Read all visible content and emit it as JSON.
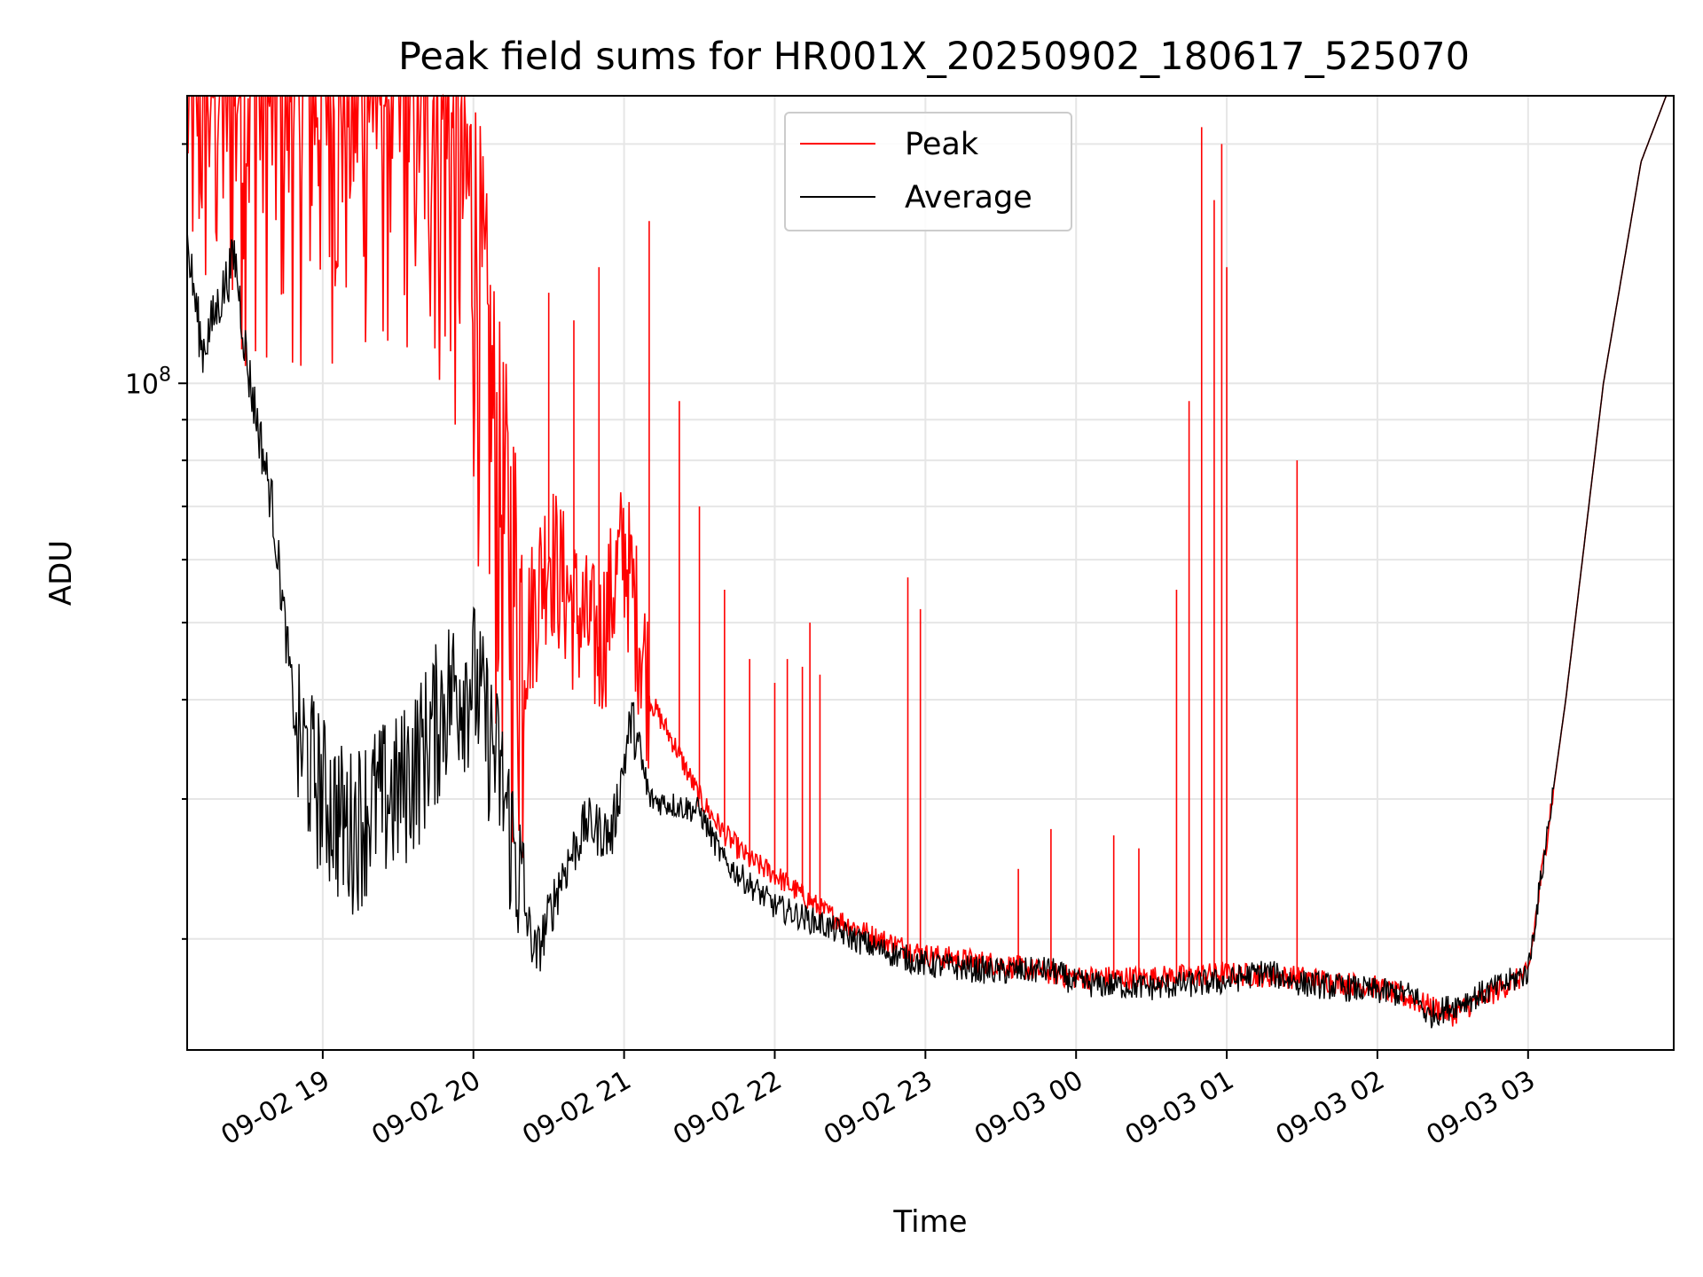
{
  "chart_data": {
    "type": "line",
    "title": "Peak field sums for HR001X_20250902_180617_525070",
    "xlabel": "Time",
    "ylabel": "ADU",
    "y_scale": "log",
    "grid": true,
    "legend_position": "top-center",
    "x_tick_labels": [
      "09-02 19",
      "09-02 20",
      "09-02 21",
      "09-02 22",
      "09-02 23",
      "09-03 00",
      "09-03 01",
      "09-03 02",
      "09-03 03"
    ],
    "y_major_tick_label": "10^8",
    "xlim": [
      "2025-09-02 18:06",
      "2025-09-03 03:58"
    ],
    "ylim": [
      14500000,
      230000000
    ],
    "colors": {
      "peak": "#ff0000",
      "average": "#000000",
      "grid": "#e6e6e6"
    },
    "series": [
      {
        "name": "Peak",
        "color": "#ff0000",
        "points": [
          [
            "2025-09-02 18:06",
            230000000
          ],
          [
            "2025-09-02 18:20",
            230000000
          ],
          [
            "2025-09-02 18:40",
            230000000
          ],
          [
            "2025-09-02 19:00",
            230000000
          ],
          [
            "2025-09-02 19:20",
            230000000
          ],
          [
            "2025-09-02 19:40",
            230000000
          ],
          [
            "2025-09-02 20:00",
            150000000
          ],
          [
            "2025-09-02 20:10",
            70000000
          ],
          [
            "2025-09-02 20:20",
            45000000
          ],
          [
            "2025-09-02 20:30",
            60000000
          ],
          [
            "2025-09-02 20:40",
            50000000
          ],
          [
            "2025-09-02 20:50",
            45000000
          ],
          [
            "2025-09-02 21:00",
            60000000
          ],
          [
            "2025-09-02 21:10",
            40000000
          ],
          [
            "2025-09-02 21:20",
            35000000
          ],
          [
            "2025-09-02 21:30",
            30000000
          ],
          [
            "2025-09-02 21:40",
            27000000
          ],
          [
            "2025-09-02 21:50",
            25000000
          ],
          [
            "2025-09-02 22:00",
            24000000
          ],
          [
            "2025-09-02 22:20",
            21500000
          ],
          [
            "2025-09-02 22:40",
            20000000
          ],
          [
            "2025-09-02 23:00",
            19000000
          ],
          [
            "2025-09-02 23:30",
            18500000
          ],
          [
            "2025-09-03 00:00",
            17800000
          ],
          [
            "2025-09-03 00:30",
            17800000
          ],
          [
            "2025-09-03 01:00",
            18000000
          ],
          [
            "2025-09-03 01:30",
            17800000
          ],
          [
            "2025-09-03 02:00",
            17300000
          ],
          [
            "2025-09-03 02:30",
            16000000
          ],
          [
            "2025-09-03 03:00",
            18000000
          ],
          [
            "2025-09-03 03:15",
            40000000
          ],
          [
            "2025-09-03 03:30",
            100000000
          ],
          [
            "2025-09-03 03:45",
            190000000
          ],
          [
            "2025-09-03 03:55",
            230000000
          ]
        ],
        "spikes": [
          [
            "2025-09-02 20:30",
            130000000
          ],
          [
            "2025-09-02 20:40",
            120000000
          ],
          [
            "2025-09-02 20:50",
            140000000
          ],
          [
            "2025-09-02 21:10",
            160000000
          ],
          [
            "2025-09-02 21:22",
            95000000
          ],
          [
            "2025-09-02 21:30",
            70000000
          ],
          [
            "2025-09-02 21:40",
            55000000
          ],
          [
            "2025-09-02 21:50",
            45000000
          ],
          [
            "2025-09-02 22:00",
            42000000
          ],
          [
            "2025-09-02 22:05",
            45000000
          ],
          [
            "2025-09-02 22:11",
            44000000
          ],
          [
            "2025-09-02 22:14",
            50000000
          ],
          [
            "2025-09-02 22:18",
            43000000
          ],
          [
            "2025-09-02 22:53",
            57000000
          ],
          [
            "2025-09-02 22:58",
            52000000
          ],
          [
            "2025-09-02 23:37",
            24500000
          ],
          [
            "2025-09-02 23:50",
            27500000
          ],
          [
            "2025-09-03 00:15",
            27000000
          ],
          [
            "2025-09-03 00:25",
            26000000
          ],
          [
            "2025-09-03 00:40",
            55000000
          ],
          [
            "2025-09-03 00:45",
            95000000
          ],
          [
            "2025-09-03 00:50",
            210000000
          ],
          [
            "2025-09-03 00:55",
            170000000
          ],
          [
            "2025-09-03 00:58",
            200000000
          ],
          [
            "2025-09-03 01:00",
            140000000
          ],
          [
            "2025-09-03 01:28",
            80000000
          ]
        ]
      },
      {
        "name": "Average",
        "color": "#000000",
        "points": [
          [
            "2025-09-02 18:06",
            150000000
          ],
          [
            "2025-09-02 18:12",
            110000000
          ],
          [
            "2025-09-02 18:20",
            130000000
          ],
          [
            "2025-09-02 18:25",
            145000000
          ],
          [
            "2025-09-02 18:30",
            105000000
          ],
          [
            "2025-09-02 18:40",
            70000000
          ],
          [
            "2025-09-02 18:50",
            35000000
          ],
          [
            "2025-09-02 19:00",
            30000000
          ],
          [
            "2025-09-02 19:10",
            27000000
          ],
          [
            "2025-09-02 19:20",
            29000000
          ],
          [
            "2025-09-02 19:30",
            30000000
          ],
          [
            "2025-09-02 19:40",
            34000000
          ],
          [
            "2025-09-02 19:50",
            40000000
          ],
          [
            "2025-09-02 20:00",
            42000000
          ],
          [
            "2025-09-02 20:10",
            32000000
          ],
          [
            "2025-09-02 20:20",
            22000000
          ],
          [
            "2025-09-02 20:25",
            19000000
          ],
          [
            "2025-09-02 20:35",
            24000000
          ],
          [
            "2025-09-02 20:45",
            28000000
          ],
          [
            "2025-09-02 20:55",
            27000000
          ],
          [
            "2025-09-02 21:03",
            38000000
          ],
          [
            "2025-09-02 21:10",
            30000000
          ],
          [
            "2025-09-02 21:20",
            29500000
          ],
          [
            "2025-09-02 21:30",
            29000000
          ],
          [
            "2025-09-02 21:40",
            25000000
          ],
          [
            "2025-09-02 22:00",
            22000000
          ],
          [
            "2025-09-02 22:20",
            20800000
          ],
          [
            "2025-09-02 22:40",
            19500000
          ],
          [
            "2025-09-02 23:00",
            18600000
          ],
          [
            "2025-09-02 23:30",
            18200000
          ],
          [
            "2025-09-02 23:50",
            18300000
          ],
          [
            "2025-09-03 00:00",
            17600000
          ],
          [
            "2025-09-03 00:30",
            17400000
          ],
          [
            "2025-09-03 01:00",
            17700000
          ],
          [
            "2025-09-03 01:15",
            18200000
          ],
          [
            "2025-09-03 01:30",
            17600000
          ],
          [
            "2025-09-03 02:00",
            17200000
          ],
          [
            "2025-09-03 02:15",
            17000000
          ],
          [
            "2025-09-03 02:20",
            16000000
          ],
          [
            "2025-09-03 02:30",
            16500000
          ],
          [
            "2025-09-03 02:50",
            17500000
          ],
          [
            "2025-09-03 03:00",
            18200000
          ],
          [
            "2025-09-03 03:15",
            40000000
          ],
          [
            "2025-09-03 03:30",
            100000000
          ],
          [
            "2025-09-03 03:45",
            190000000
          ],
          [
            "2025-09-03 03:55",
            230000000
          ]
        ]
      }
    ]
  }
}
